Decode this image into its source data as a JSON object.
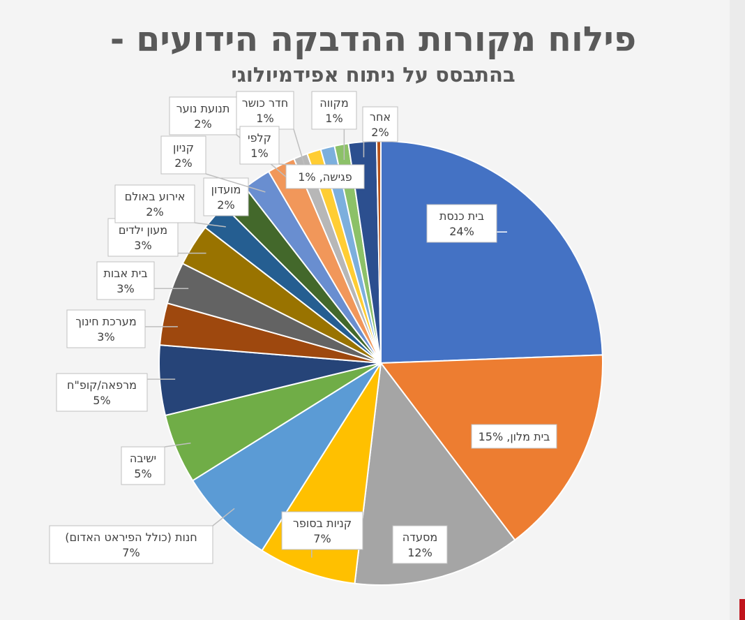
{
  "chart_data": {
    "type": "pie",
    "title": "פילוח מקורות ההדבקה הידועים -",
    "subtitle": "בהתבסס על ניתוח אפידמיולוגי",
    "slices": [
      {
        "name": "בית כנסת",
        "value": 24,
        "value_label": "24%",
        "color": "#4472c4"
      },
      {
        "name": "בית מלון,",
        "value": 15,
        "value_label": "15%",
        "color": "#ed7d31"
      },
      {
        "name": "מסעדה",
        "value": 12,
        "value_label": "12%",
        "color": "#a5a5a5"
      },
      {
        "name": "קניות בסופר",
        "value": 7,
        "value_label": "7%",
        "color": "#ffc000"
      },
      {
        "name": "חנות (כולל הפיראט האדום)",
        "value": 7,
        "value_label": "7%",
        "color": "#5b9bd5"
      },
      {
        "name": "ישיבה",
        "value": 5,
        "value_label": "5%",
        "color": "#70ad47"
      },
      {
        "name": "מרפאה/קופ\"ח",
        "value": 5,
        "value_label": "5%",
        "color": "#264478"
      },
      {
        "name": "מערכת חינוך",
        "value": 3,
        "value_label": "3%",
        "color": "#9e480e"
      },
      {
        "name": "בית אבות",
        "value": 3,
        "value_label": "3%",
        "color": "#636363"
      },
      {
        "name": "מעון ילדים",
        "value": 3,
        "value_label": "3%",
        "color": "#997300"
      },
      {
        "name": "אירוע באולם",
        "value": 2,
        "value_label": "2%",
        "color": "#255e91"
      },
      {
        "name": "מועדון",
        "value": 2,
        "value_label": "2%",
        "color": "#43682b"
      },
      {
        "name": "קניון",
        "value": 2,
        "value_label": "2%",
        "color": "#698ed0"
      },
      {
        "name": "תנועת נוער",
        "value": 2,
        "value_label": "2%",
        "color": "#f1975a"
      },
      {
        "name": "חדר כושר",
        "value": 1,
        "value_label": "1%",
        "color": "#b7b7b7"
      },
      {
        "name": "קלפי",
        "value": 1,
        "value_label": "1%",
        "color": "#ffcd33"
      },
      {
        "name": "פגישה,",
        "value": 1,
        "value_label": "1%",
        "color": "#7cafdd"
      },
      {
        "name": "מקווה",
        "value": 1,
        "value_label": "1%",
        "color": "#8cc168"
      },
      {
        "name": "אחר",
        "value": 2,
        "value_label": "2%",
        "color": "#2c4f8f"
      },
      {
        "name": "",
        "value": 0.3,
        "value_label": "",
        "color": "#b5521b"
      }
    ]
  }
}
